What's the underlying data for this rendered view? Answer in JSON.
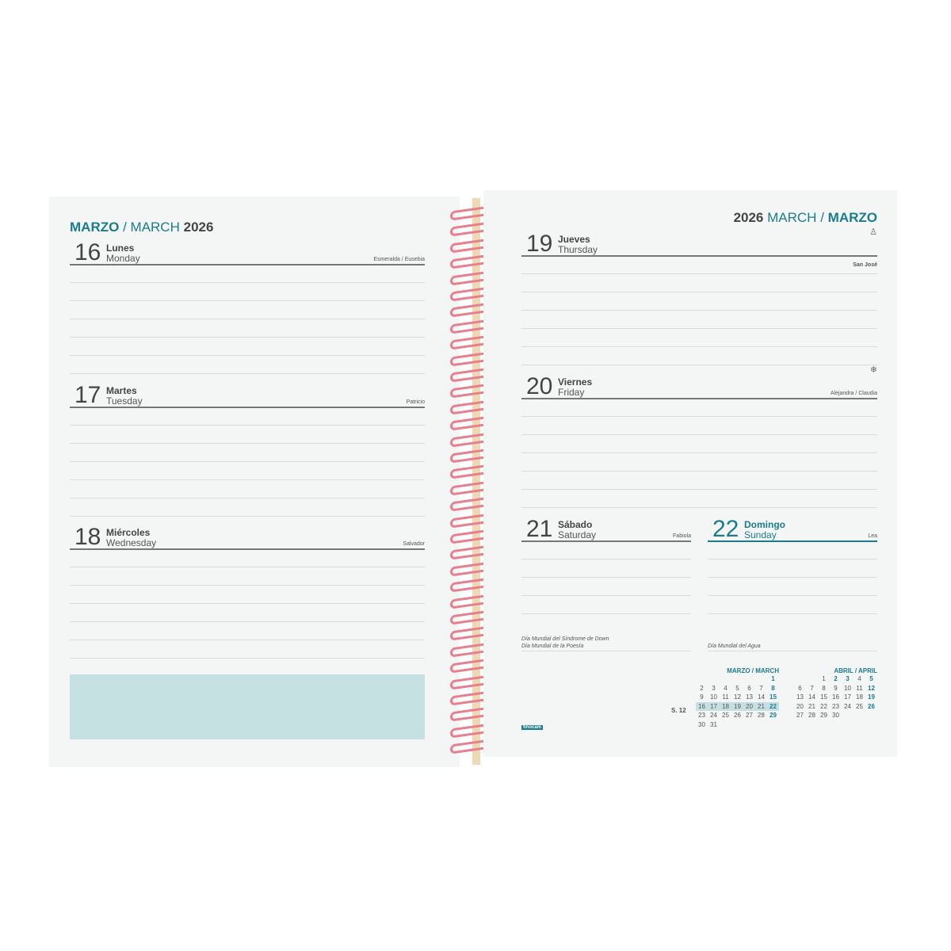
{
  "left": {
    "title": {
      "es": "MARZO",
      "sep": "/",
      "en": "MARCH",
      "year": "2026"
    },
    "days": [
      {
        "num": "16",
        "es": "Lunes",
        "en": "Monday",
        "saint": "Esmeralda / Eusebia"
      },
      {
        "num": "17",
        "es": "Martes",
        "en": "Tuesday",
        "saint": "Patricio"
      },
      {
        "num": "18",
        "es": "Miércoles",
        "en": "Wednesday",
        "saint": "Salvador"
      }
    ]
  },
  "right": {
    "title": {
      "year": "2026",
      "en": "MARCH",
      "sep": "/",
      "es": "MARZO"
    },
    "days": [
      {
        "num": "19",
        "es": "Jueves",
        "en": "Thursday",
        "saint": "San José",
        "icon": "person-icon"
      },
      {
        "num": "20",
        "es": "Viernes",
        "en": "Friday",
        "saint": "Alejandra / Claudia",
        "icon": "snowflake-icon"
      },
      {
        "num": "21",
        "es": "Sábado",
        "en": "Saturday",
        "saint": "Fabiola",
        "notes": [
          "Día Mundial del Síndrome de Down",
          "Día Mundial de la Poesía"
        ]
      },
      {
        "num": "22",
        "es": "Domingo",
        "en": "Sunday",
        "saint": "Lea",
        "notes": [
          "Día Mundial del Agua"
        ]
      }
    ],
    "brand": "finocam",
    "mini": {
      "week_label": "S. 12",
      "march": {
        "title": "MARZO / MARCH",
        "weeks": [
          [
            "",
            "",
            "",
            "",
            "",
            "",
            "1"
          ],
          [
            "2",
            "3",
            "4",
            "5",
            "6",
            "7",
            "8"
          ],
          [
            "9",
            "10",
            "11",
            "12",
            "13",
            "14",
            "15"
          ],
          [
            "16",
            "17",
            "18",
            "19",
            "20",
            "21",
            "22"
          ],
          [
            "23",
            "24",
            "25",
            "26",
            "27",
            "28",
            "29"
          ],
          [
            "30",
            "31",
            "",
            "",
            "",
            "",
            ""
          ]
        ]
      },
      "april": {
        "title": "ABRIL / APRIL",
        "weeks": [
          [
            "",
            "",
            "1",
            "2",
            "3",
            "4",
            "5"
          ],
          [
            "6",
            "7",
            "8",
            "9",
            "10",
            "11",
            "12"
          ],
          [
            "13",
            "14",
            "15",
            "16",
            "17",
            "18",
            "19"
          ],
          [
            "20",
            "21",
            "22",
            "23",
            "24",
            "25",
            "26"
          ],
          [
            "27",
            "28",
            "29",
            "30",
            "",
            "",
            ""
          ]
        ]
      }
    }
  },
  "colors": {
    "accent": "#1a7c8e",
    "spiral": "#e77f8e",
    "note_box": "#c6e1e1",
    "page": "#f3f6f5"
  }
}
